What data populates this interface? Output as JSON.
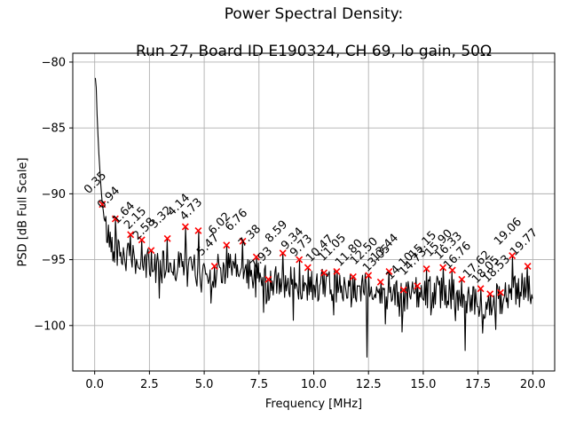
{
  "figure": {
    "title_line1": "Power Spectral Density:",
    "title_line2": "Run 27, Board ID E190324, CH 69, lo gain, 50Ω",
    "background": "#ffffff"
  },
  "chart_data": {
    "type": "line",
    "title": "Power Spectral Density:\nRun 27, Board ID E190324, CH 69, lo gain, 50Ω",
    "xlabel": "Frequency [MHz]",
    "ylabel": "PSD [dB Full Scale]",
    "xlim": [
      -1.0,
      21.0
    ],
    "ylim": [
      -103.45,
      -79.33
    ],
    "grid": true,
    "legend": "none",
    "line_color": "#000000",
    "marker_color": "#ff0000",
    "grid_color": "#b0b0b0",
    "x_tick_values": [
      0,
      2.5,
      5,
      7.5,
      10,
      12.5,
      15,
      17.5,
      20
    ],
    "x_tick_labels": [
      "0.0",
      "2.5",
      "5.0",
      "7.5",
      "10.0",
      "12.5",
      "15.0",
      "17.5",
      "20.0"
    ],
    "y_tick_values": [
      -80,
      -85,
      -90,
      -95,
      -100
    ],
    "y_tick_labels": [
      "−80",
      "−85",
      "−90",
      "−95",
      "−100"
    ],
    "peaks": [
      {
        "freq": 0.35,
        "psd": -90.8,
        "label": "0.35"
      },
      {
        "freq": 0.94,
        "psd": -91.9,
        "label": "0.94"
      },
      {
        "freq": 1.64,
        "psd": -93.1,
        "label": "1.64"
      },
      {
        "freq": 2.15,
        "psd": -93.5,
        "label": "2.15"
      },
      {
        "freq": 2.58,
        "psd": -94.3,
        "label": "2.58"
      },
      {
        "freq": 3.32,
        "psd": -93.4,
        "label": "3.32"
      },
      {
        "freq": 4.14,
        "psd": -92.5,
        "label": "4.14"
      },
      {
        "freq": 4.73,
        "psd": -92.8,
        "label": "4.73"
      },
      {
        "freq": 5.47,
        "psd": -95.5,
        "label": "5.47"
      },
      {
        "freq": 6.02,
        "psd": -93.9,
        "label": "6.02"
      },
      {
        "freq": 6.76,
        "psd": -93.6,
        "label": "6.76"
      },
      {
        "freq": 7.38,
        "psd": -94.8,
        "label": "7.38"
      },
      {
        "freq": 7.93,
        "psd": -96.5,
        "label": "7.93"
      },
      {
        "freq": 8.59,
        "psd": -94.5,
        "label": "8.59"
      },
      {
        "freq": 9.34,
        "psd": -95.0,
        "label": "9.34"
      },
      {
        "freq": 9.73,
        "psd": -95.6,
        "label": "9.73"
      },
      {
        "freq": 10.47,
        "psd": -96.0,
        "label": "10.47"
      },
      {
        "freq": 11.05,
        "psd": -95.9,
        "label": "11.05"
      },
      {
        "freq": 11.8,
        "psd": -96.3,
        "label": "11.80"
      },
      {
        "freq": 12.5,
        "psd": -96.2,
        "label": "12.50"
      },
      {
        "freq": 13.05,
        "psd": -96.7,
        "label": "13.05"
      },
      {
        "freq": 13.44,
        "psd": -95.9,
        "label": "13.44"
      },
      {
        "freq": 14.1,
        "psd": -97.3,
        "label": "14.10"
      },
      {
        "freq": 14.73,
        "psd": -97.0,
        "label": "14.73"
      },
      {
        "freq": 15.15,
        "psd": -95.7,
        "label": "15.15"
      },
      {
        "freq": 15.9,
        "psd": -95.6,
        "label": "15.90"
      },
      {
        "freq": 16.33,
        "psd": -95.8,
        "label": "16.33"
      },
      {
        "freq": 16.76,
        "psd": -96.5,
        "label": "16.76"
      },
      {
        "freq": 17.62,
        "psd": -97.2,
        "label": "17.62"
      },
      {
        "freq": 18.05,
        "psd": -97.6,
        "label": "18.05"
      },
      {
        "freq": 18.53,
        "psd": -97.5,
        "label": "18.53"
      },
      {
        "freq": 19.06,
        "psd": -94.7,
        "label": "19.06"
      },
      {
        "freq": 19.77,
        "psd": -95.5,
        "label": "19.77"
      }
    ],
    "envelope": [
      [
        0.03,
        -81.2
      ],
      [
        0.06,
        -81.4
      ],
      [
        0.12,
        -84.5
      ],
      [
        0.2,
        -87.3
      ],
      [
        0.3,
        -89.8
      ],
      [
        0.45,
        -92.2
      ],
      [
        0.6,
        -93.2
      ],
      [
        0.8,
        -93.8
      ],
      [
        1.2,
        -94.6
      ],
      [
        2.0,
        -95.2
      ],
      [
        3.0,
        -95.6
      ],
      [
        4.0,
        -95.4
      ],
      [
        5.0,
        -96.0
      ],
      [
        6.0,
        -95.6
      ],
      [
        7.0,
        -96.0
      ],
      [
        8.0,
        -96.6
      ],
      [
        9.0,
        -96.8
      ],
      [
        10.0,
        -96.9
      ],
      [
        11.0,
        -97.0
      ],
      [
        12.0,
        -97.2
      ],
      [
        13.0,
        -97.4
      ],
      [
        14.0,
        -97.8
      ],
      [
        15.0,
        -97.5
      ],
      [
        16.0,
        -97.4
      ],
      [
        17.0,
        -98.0
      ],
      [
        18.0,
        -98.4
      ],
      [
        18.8,
        -97.6
      ],
      [
        19.5,
        -97.2
      ],
      [
        20.0,
        -97.6
      ]
    ],
    "dips": [
      [
        5.3,
        -98.3
      ],
      [
        7.7,
        -99.0
      ],
      [
        9.05,
        -99.6
      ],
      [
        10.9,
        -99.2
      ],
      [
        12.42,
        -102.4
      ],
      [
        13.9,
        -99.3
      ],
      [
        15.35,
        -99.2
      ],
      [
        16.9,
        -101.9
      ],
      [
        18.3,
        -100.3
      ],
      [
        19.4,
        -98.6
      ]
    ],
    "line_gen": {
      "f_start": 0.03,
      "f_end": 20.0,
      "f_step": 0.04,
      "noise_start": 0.45,
      "noise_db": 1.25,
      "dip_chance": 0.08,
      "dip_extra": 2.2,
      "seed": 42
    }
  }
}
